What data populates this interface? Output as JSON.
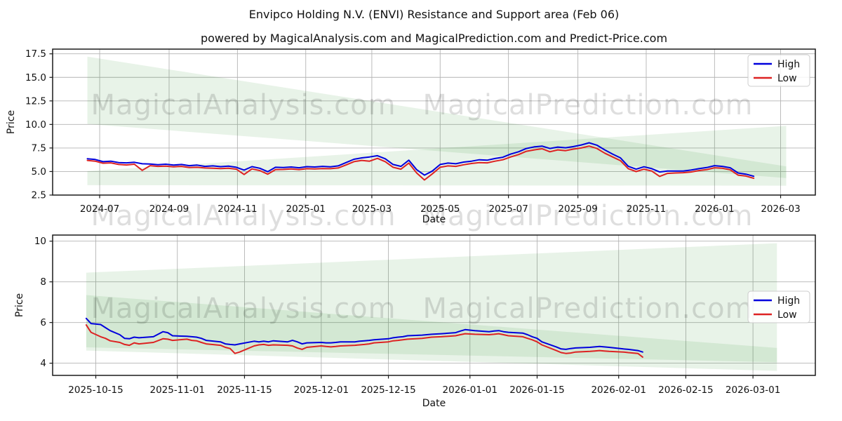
{
  "header": {
    "title": "Envipco Holding N.V. (ENVI) Resistance and Support area (Feb 06)",
    "subtitle": "powered by MagicalAnalysis.com and MagicalPrediction.com and Predict-Price.com"
  },
  "watermarks": {
    "texts": [
      "MagicalAnalysis.com",
      "MagicalPrediction.com"
    ],
    "color_rgba": "rgba(0,0,0,0.13)"
  },
  "legend": {
    "items": [
      {
        "label": "High",
        "color": "#0000dd"
      },
      {
        "label": "Low",
        "color": "#dd2222"
      }
    ]
  },
  "colors": {
    "high_line": "#0000dd",
    "low_line": "#dd2222",
    "band_green": "#228B22",
    "grid": "#b4b4b4",
    "spine": "#1a1a1a"
  },
  "chart_data": [
    {
      "type": "line",
      "title": "",
      "xlabel": "Date",
      "ylabel": "Price",
      "grid": true,
      "legend_position": "upper right",
      "xlim": [
        "2024-05-20",
        "2026-04-01"
      ],
      "ylim": [
        2.5,
        18.0
      ],
      "yticks": [
        {
          "v": 2.5,
          "label": "2.5"
        },
        {
          "v": 5.0,
          "label": "5.0"
        },
        {
          "v": 7.5,
          "label": "7.5"
        },
        {
          "v": 10.0,
          "label": "10.0"
        },
        {
          "v": 12.5,
          "label": "12.5"
        },
        {
          "v": 15.0,
          "label": "15.0"
        },
        {
          "v": 17.5,
          "label": "17.5"
        }
      ],
      "xticks": [
        {
          "date": "2024-07-01",
          "label": "2024-07"
        },
        {
          "date": "2024-09-01",
          "label": "2024-09"
        },
        {
          "date": "2024-11-01",
          "label": "2024-11"
        },
        {
          "date": "2025-01-01",
          "label": "2025-01"
        },
        {
          "date": "2025-03-01",
          "label": "2025-03"
        },
        {
          "date": "2025-05-01",
          "label": "2025-05"
        },
        {
          "date": "2025-07-01",
          "label": "2025-07"
        },
        {
          "date": "2025-09-01",
          "label": "2025-09"
        },
        {
          "date": "2025-11-01",
          "label": "2025-11"
        },
        {
          "date": "2026-01-01",
          "label": "2026-01"
        },
        {
          "date": "2026-03-01",
          "label": "2026-03"
        }
      ],
      "dates": [
        "2024-06-20",
        "2024-06-27",
        "2024-07-04",
        "2024-07-11",
        "2024-07-18",
        "2024-07-25",
        "2024-08-01",
        "2024-08-08",
        "2024-08-15",
        "2024-08-22",
        "2024-08-29",
        "2024-09-05",
        "2024-09-12",
        "2024-09-19",
        "2024-09-26",
        "2024-10-03",
        "2024-10-10",
        "2024-10-17",
        "2024-10-24",
        "2024-10-31",
        "2024-11-07",
        "2024-11-14",
        "2024-11-21",
        "2024-11-28",
        "2024-12-05",
        "2024-12-12",
        "2024-12-19",
        "2024-12-26",
        "2025-01-02",
        "2025-01-09",
        "2025-01-16",
        "2025-01-23",
        "2025-01-30",
        "2025-02-06",
        "2025-02-13",
        "2025-02-20",
        "2025-02-27",
        "2025-03-06",
        "2025-03-13",
        "2025-03-20",
        "2025-03-27",
        "2025-04-03",
        "2025-04-10",
        "2025-04-17",
        "2025-04-24",
        "2025-05-01",
        "2025-05-08",
        "2025-05-15",
        "2025-05-22",
        "2025-05-29",
        "2025-06-05",
        "2025-06-12",
        "2025-06-19",
        "2025-06-26",
        "2025-07-03",
        "2025-07-10",
        "2025-07-17",
        "2025-07-24",
        "2025-07-31",
        "2025-08-07",
        "2025-08-14",
        "2025-08-21",
        "2025-08-28",
        "2025-09-04",
        "2025-09-11",
        "2025-09-18",
        "2025-09-25",
        "2025-10-02",
        "2025-10-09",
        "2025-10-16",
        "2025-10-23",
        "2025-10-30",
        "2025-11-06",
        "2025-11-13",
        "2025-11-20",
        "2025-11-27",
        "2025-12-04",
        "2025-12-11",
        "2025-12-18",
        "2025-12-25",
        "2026-01-01",
        "2026-01-08",
        "2026-01-15",
        "2026-01-22",
        "2026-01-29",
        "2026-02-05"
      ],
      "series": [
        {
          "name": "High",
          "color": "#0000dd",
          "values": [
            6.35,
            6.28,
            6.05,
            6.1,
            5.95,
            5.92,
            5.98,
            5.82,
            5.8,
            5.72,
            5.78,
            5.68,
            5.75,
            5.62,
            5.68,
            5.55,
            5.6,
            5.52,
            5.58,
            5.45,
            5.15,
            5.52,
            5.35,
            4.98,
            5.45,
            5.42,
            5.48,
            5.4,
            5.52,
            5.48,
            5.55,
            5.5,
            5.6,
            5.95,
            6.3,
            6.45,
            6.55,
            6.68,
            6.35,
            5.75,
            5.55,
            6.2,
            5.2,
            4.62,
            5.05,
            5.75,
            5.9,
            5.82,
            6.0,
            6.1,
            6.25,
            6.2,
            6.38,
            6.52,
            6.85,
            7.1,
            7.45,
            7.62,
            7.7,
            7.45,
            7.6,
            7.52,
            7.65,
            7.82,
            8.05,
            7.8,
            7.3,
            6.85,
            6.45,
            5.55,
            5.25,
            5.5,
            5.3,
            4.95,
            5.05,
            5.05,
            5.05,
            5.15,
            5.3,
            5.42,
            5.62,
            5.55,
            5.4,
            4.85,
            4.72,
            4.5
          ]
        },
        {
          "name": "Low",
          "color": "#dd2222",
          "values": [
            6.18,
            6.1,
            5.88,
            5.92,
            5.75,
            5.7,
            5.78,
            5.12,
            5.62,
            5.55,
            5.58,
            5.5,
            5.55,
            5.42,
            5.45,
            5.38,
            5.35,
            5.32,
            5.35,
            5.25,
            4.68,
            5.28,
            5.1,
            4.72,
            5.2,
            5.22,
            5.28,
            5.2,
            5.3,
            5.28,
            5.32,
            5.3,
            5.38,
            5.7,
            6.05,
            6.18,
            6.1,
            6.4,
            6.05,
            5.45,
            5.25,
            5.9,
            4.85,
            4.1,
            4.75,
            5.45,
            5.6,
            5.55,
            5.72,
            5.85,
            5.95,
            5.92,
            6.1,
            6.25,
            6.55,
            6.8,
            7.15,
            7.3,
            7.42,
            7.1,
            7.3,
            7.22,
            7.38,
            7.5,
            7.7,
            7.45,
            6.95,
            6.55,
            6.15,
            5.3,
            5.0,
            5.25,
            5.05,
            4.48,
            4.8,
            4.85,
            4.88,
            4.95,
            5.1,
            5.2,
            5.4,
            5.35,
            5.18,
            4.62,
            4.52,
            4.28
          ]
        }
      ],
      "bands": [
        {
          "name": "resistance-area",
          "opacity": 0.1,
          "points": [
            [
              "2024-06-20",
              17.2
            ],
            [
              "2026-03-06",
              5.55
            ],
            [
              "2026-03-06",
              4.3
            ],
            [
              "2024-06-20",
              10.05
            ]
          ]
        },
        {
          "name": "support-area",
          "opacity": 0.1,
          "points": [
            [
              "2024-06-20",
              5.05
            ],
            [
              "2026-03-06",
              9.85
            ],
            [
              "2026-03-06",
              3.5
            ],
            [
              "2024-06-20",
              3.55
            ]
          ]
        }
      ]
    },
    {
      "type": "line",
      "title": "",
      "xlabel": "Date",
      "ylabel": "Price",
      "grid": true,
      "legend_position": "right",
      "xlim": [
        "2025-10-06",
        "2026-03-14"
      ],
      "ylim": [
        3.4,
        10.3
      ],
      "yticks": [
        {
          "v": 4,
          "label": "4"
        },
        {
          "v": 6,
          "label": "6"
        },
        {
          "v": 8,
          "label": "8"
        },
        {
          "v": 10,
          "label": "10"
        }
      ],
      "xticks": [
        {
          "date": "2025-10-15",
          "label": "2025-10-15"
        },
        {
          "date": "2025-11-01",
          "label": "2025-11-01"
        },
        {
          "date": "2025-11-15",
          "label": "2025-11-15"
        },
        {
          "date": "2025-12-01",
          "label": "2025-12-01"
        },
        {
          "date": "2025-12-15",
          "label": "2025-12-15"
        },
        {
          "date": "2026-01-01",
          "label": "2026-01-01"
        },
        {
          "date": "2026-01-15",
          "label": "2026-01-15"
        },
        {
          "date": "2026-02-01",
          "label": "2026-02-01"
        },
        {
          "date": "2026-02-15",
          "label": "2026-02-15"
        },
        {
          "date": "2026-03-01",
          "label": "2026-03-01"
        }
      ],
      "dates": [
        "2025-10-13",
        "2025-10-14",
        "2025-10-16",
        "2025-10-17",
        "2025-10-18",
        "2025-10-20",
        "2025-10-21",
        "2025-10-22",
        "2025-10-23",
        "2025-10-24",
        "2025-10-27",
        "2025-10-29",
        "2025-10-30",
        "2025-10-31",
        "2025-11-03",
        "2025-11-04",
        "2025-11-05",
        "2025-11-06",
        "2025-11-07",
        "2025-11-10",
        "2025-11-11",
        "2025-11-12",
        "2025-11-13",
        "2025-11-14",
        "2025-11-17",
        "2025-11-18",
        "2025-11-19",
        "2025-11-20",
        "2025-11-21",
        "2025-11-24",
        "2025-11-25",
        "2025-11-26",
        "2025-11-27",
        "2025-11-28",
        "2025-12-01",
        "2025-12-02",
        "2025-12-03",
        "2025-12-04",
        "2025-12-05",
        "2025-12-08",
        "2025-12-09",
        "2025-12-10",
        "2025-12-11",
        "2025-12-12",
        "2025-12-15",
        "2025-12-16",
        "2025-12-17",
        "2025-12-18",
        "2025-12-19",
        "2025-12-22",
        "2025-12-23",
        "2025-12-24",
        "2025-12-26",
        "2025-12-29",
        "2025-12-30",
        "2025-12-31",
        "2026-01-02",
        "2026-01-05",
        "2026-01-06",
        "2026-01-07",
        "2026-01-08",
        "2026-01-09",
        "2026-01-12",
        "2026-01-13",
        "2026-01-14",
        "2026-01-15",
        "2026-01-16",
        "2026-01-19",
        "2026-01-20",
        "2026-01-21",
        "2026-01-22",
        "2026-01-23",
        "2026-01-26",
        "2026-01-27",
        "2026-01-28",
        "2026-01-29",
        "2026-01-30",
        "2026-02-02",
        "2026-02-03",
        "2026-02-04",
        "2026-02-05",
        "2026-02-06"
      ],
      "series": [
        {
          "name": "High",
          "color": "#0000dd",
          "values": [
            6.2,
            5.95,
            5.9,
            5.75,
            5.6,
            5.4,
            5.22,
            5.2,
            5.28,
            5.25,
            5.3,
            5.55,
            5.5,
            5.35,
            5.32,
            5.3,
            5.28,
            5.22,
            5.12,
            5.05,
            4.95,
            4.92,
            4.9,
            4.95,
            5.08,
            5.05,
            5.08,
            5.05,
            5.1,
            5.05,
            5.12,
            5.05,
            4.95,
            5.0,
            5.02,
            5.0,
            5.0,
            5.02,
            5.05,
            5.05,
            5.08,
            5.1,
            5.12,
            5.15,
            5.2,
            5.25,
            5.28,
            5.3,
            5.35,
            5.38,
            5.4,
            5.42,
            5.45,
            5.5,
            5.58,
            5.65,
            5.6,
            5.55,
            5.58,
            5.6,
            5.55,
            5.52,
            5.48,
            5.4,
            5.3,
            5.22,
            5.05,
            4.8,
            4.7,
            4.68,
            4.72,
            4.75,
            4.78,
            4.8,
            4.82,
            4.8,
            4.78,
            4.7,
            4.68,
            4.65,
            4.62,
            4.55
          ]
        },
        {
          "name": "Low",
          "color": "#dd2222",
          "values": [
            5.88,
            5.52,
            5.3,
            5.22,
            5.1,
            5.02,
            4.92,
            4.88,
            5.0,
            4.95,
            5.02,
            5.2,
            5.18,
            5.12,
            5.18,
            5.12,
            5.1,
            5.02,
            4.95,
            4.88,
            4.78,
            4.72,
            4.48,
            4.55,
            4.85,
            4.9,
            4.92,
            4.88,
            4.9,
            4.88,
            4.85,
            4.75,
            4.68,
            4.78,
            4.85,
            4.82,
            4.8,
            4.82,
            4.85,
            4.88,
            4.9,
            4.92,
            4.95,
            5.0,
            5.05,
            5.1,
            5.12,
            5.15,
            5.18,
            5.22,
            5.25,
            5.28,
            5.3,
            5.35,
            5.4,
            5.45,
            5.42,
            5.4,
            5.42,
            5.45,
            5.4,
            5.35,
            5.3,
            5.22,
            5.15,
            5.05,
            4.9,
            4.62,
            4.52,
            4.48,
            4.5,
            4.55,
            4.58,
            4.6,
            4.62,
            4.6,
            4.58,
            4.55,
            4.52,
            4.5,
            4.48,
            4.3
          ]
        }
      ],
      "bands": [
        {
          "name": "outer-prediction-area",
          "opacity": 0.1,
          "points": [
            [
              "2025-10-13",
              8.45
            ],
            [
              "2026-03-06",
              9.9
            ],
            [
              "2026-03-06",
              3.62
            ],
            [
              "2025-10-13",
              4.62
            ]
          ]
        },
        {
          "name": "inner-prediction-area",
          "opacity": 0.1,
          "points": [
            [
              "2025-10-13",
              7.35
            ],
            [
              "2026-03-06",
              4.75
            ],
            [
              "2026-03-06",
              4.05
            ],
            [
              "2025-10-13",
              4.78
            ]
          ]
        }
      ]
    }
  ]
}
